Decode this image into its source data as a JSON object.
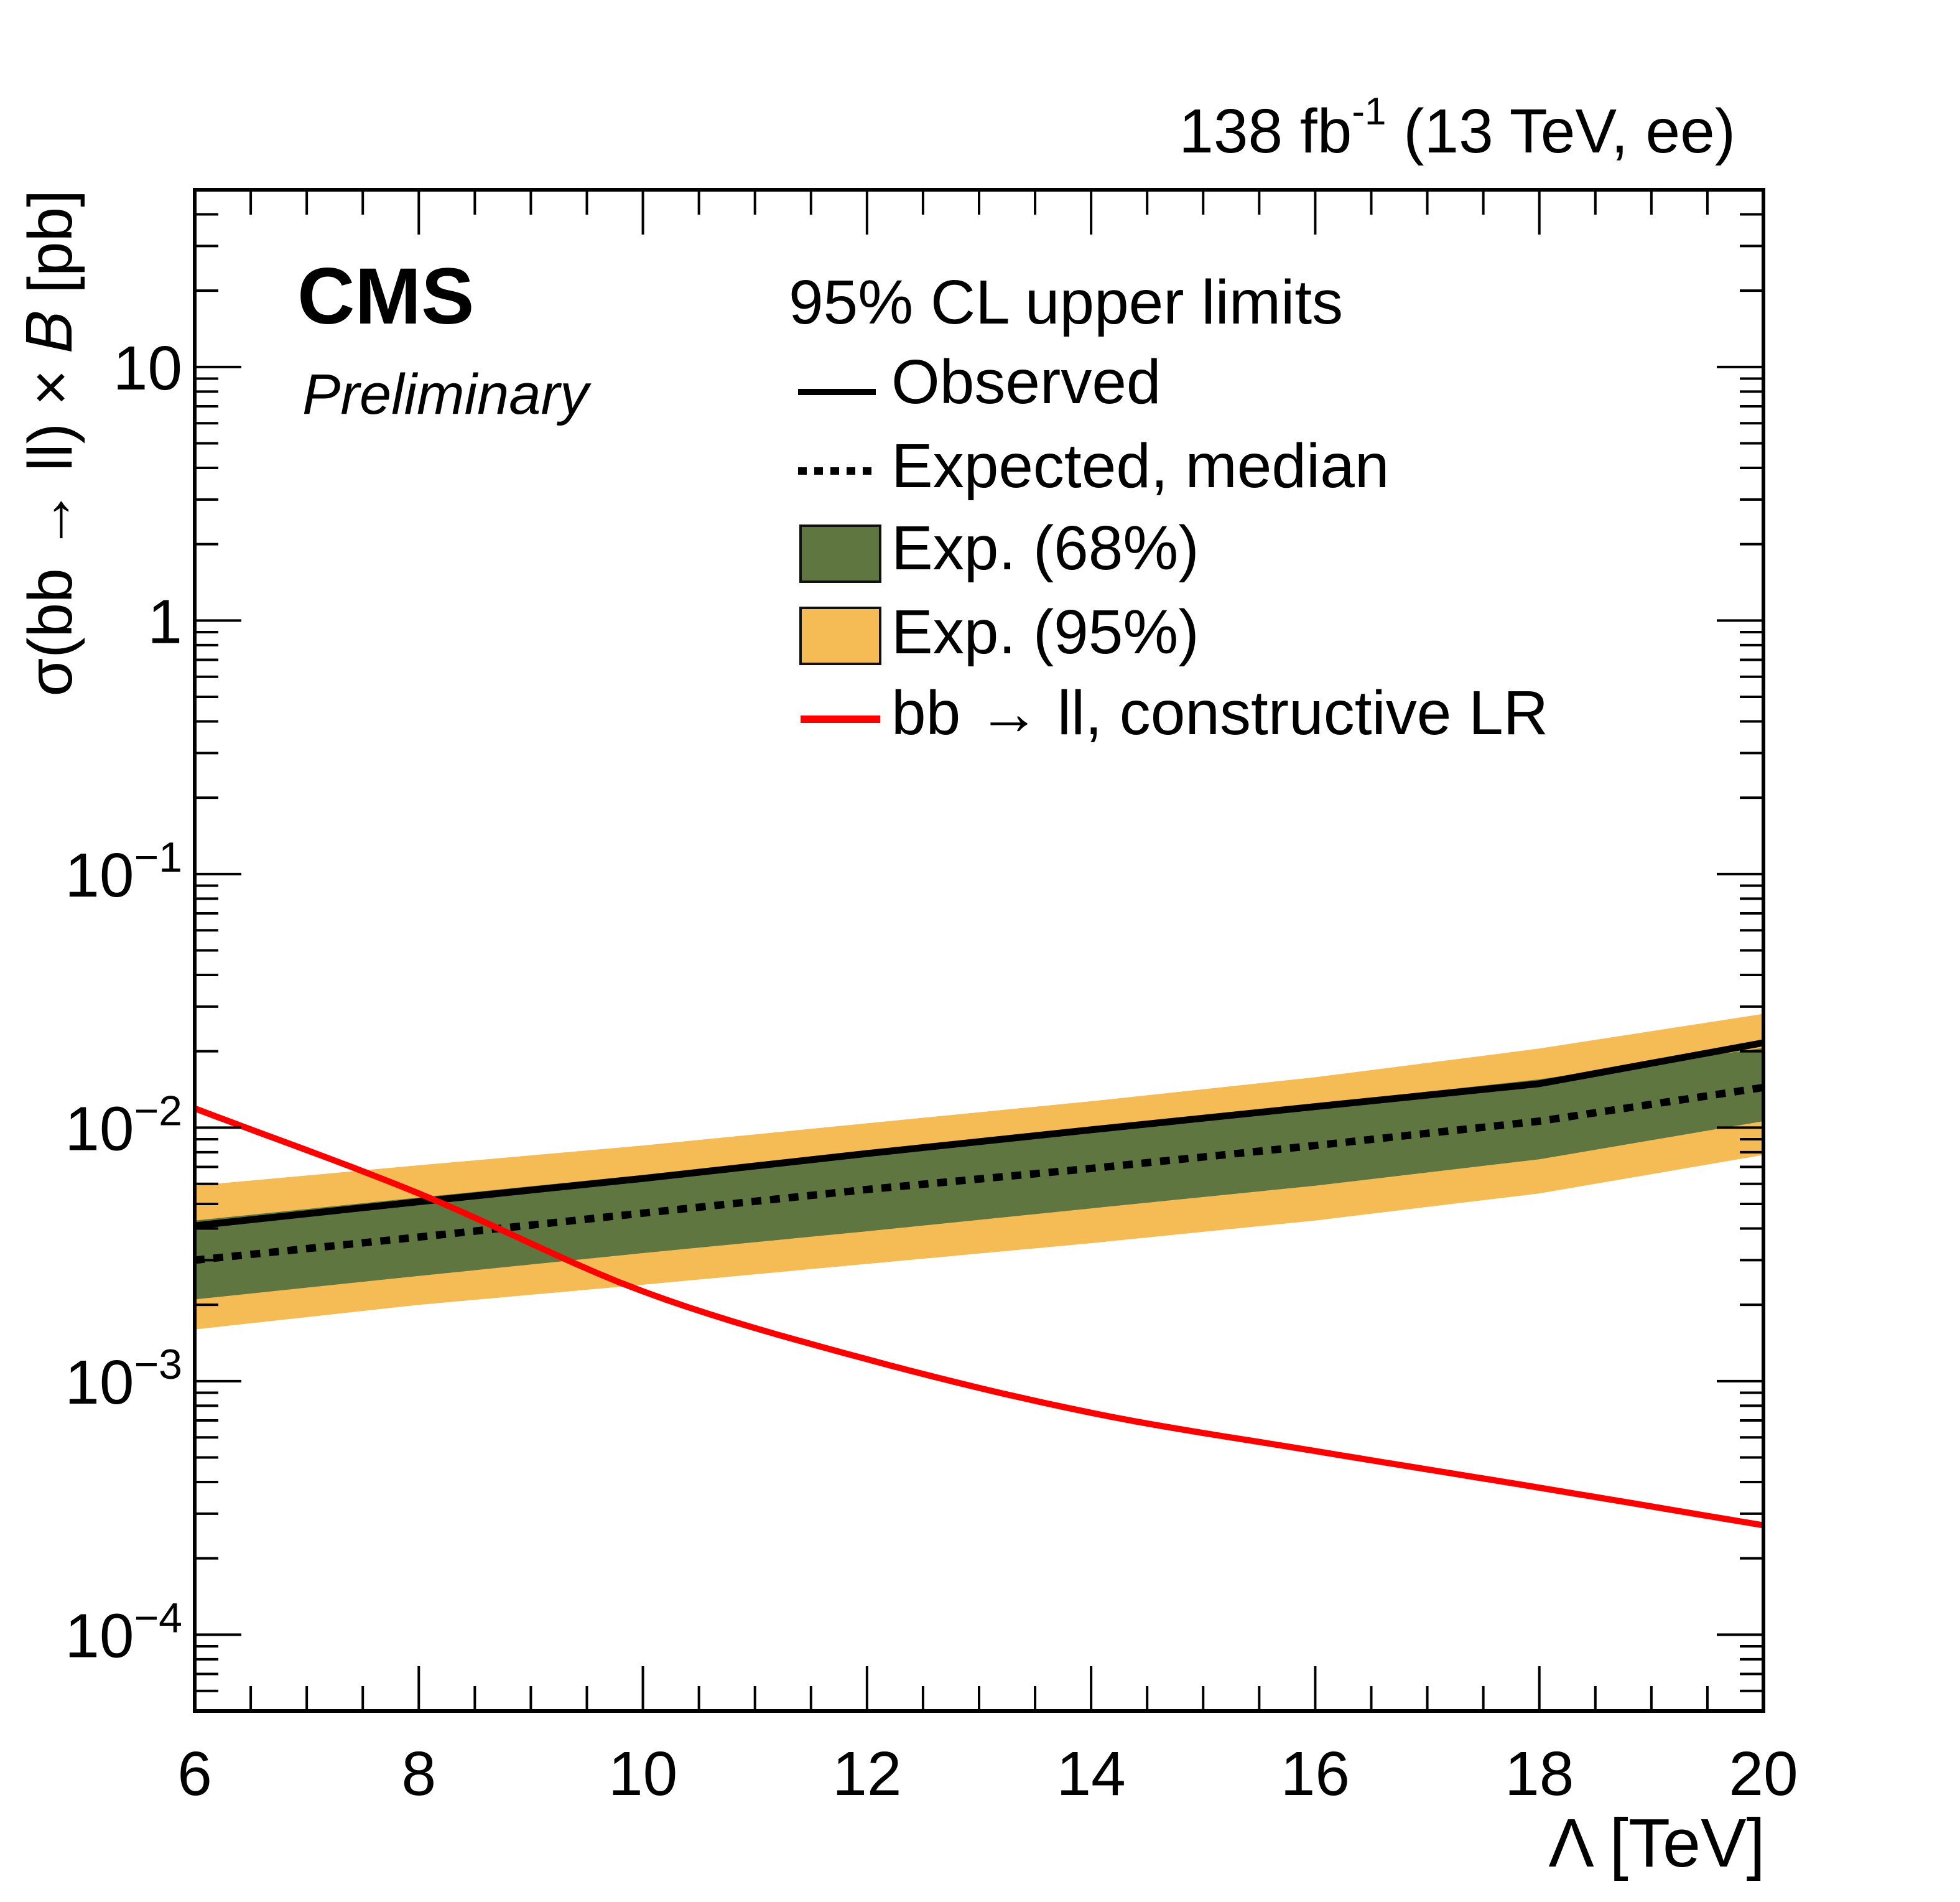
{
  "chart_data": {
    "type": "line",
    "title": "",
    "header_right": "138 fb",
    "header_right_sup": "-1",
    "header_right_rest": " (13 TeV, ee)",
    "experiment": "CMS",
    "status": "Preliminary",
    "xlabel": "Λ [TeV]",
    "ylabel": "σ(bb → ll) × 𝐵 [pb]",
    "xlim": [
      6,
      20
    ],
    "ylim": [
      5e-05,
      50
    ],
    "yscale": "log",
    "grid": false,
    "x_ticks": [
      6,
      8,
      10,
      12,
      14,
      16,
      18,
      20
    ],
    "x_tick_labels": [
      "6",
      "8",
      "10",
      "12",
      "14",
      "16",
      "18",
      "20"
    ],
    "y_ticks": [
      10,
      1,
      0.1,
      0.01,
      0.001,
      0.0001
    ],
    "y_tick_labels": [
      {
        "base": "10",
        "exp": ""
      },
      {
        "base": "1",
        "exp": ""
      },
      {
        "base": "10",
        "exp": "−1"
      },
      {
        "base": "10",
        "exp": "−2"
      },
      {
        "base": "10",
        "exp": "−3"
      },
      {
        "base": "10",
        "exp": "−4"
      }
    ],
    "legend": {
      "title": "95% CL upper limits",
      "position": "top-right",
      "entries": [
        {
          "label": "Observed",
          "style": "solid-line",
          "color": "#000000"
        },
        {
          "label": "Expected, median",
          "style": "dotted-line",
          "color": "#000000"
        },
        {
          "label": "Exp. (68%)",
          "style": "box",
          "color": "#607641"
        },
        {
          "label": "Exp. (95%)",
          "style": "box",
          "color": "#F5BB54"
        },
        {
          "label": "bb → ll, constructive LR",
          "style": "solid-line",
          "color": "#FF0000"
        }
      ]
    },
    "x": [
      6,
      8,
      10,
      12,
      14,
      16,
      18,
      20
    ],
    "series": [
      {
        "name": "Exp. (95%) upper",
        "values": [
          0.0059,
          0.0071,
          0.0085,
          0.0104,
          0.0127,
          0.0158,
          0.0205,
          0.0281
        ]
      },
      {
        "name": "Exp. (68%) upper",
        "values": [
          0.0043,
          0.0053,
          0.0065,
          0.0081,
          0.01,
          0.0124,
          0.0155,
          0.0206
        ]
      },
      {
        "name": "Observed",
        "values": [
          0.0041,
          0.0051,
          0.0063,
          0.0079,
          0.0098,
          0.0121,
          0.0149,
          0.0216
        ]
      },
      {
        "name": "Expected, median",
        "values": [
          0.003,
          0.0037,
          0.0046,
          0.0057,
          0.0069,
          0.0085,
          0.0106,
          0.0144
        ]
      },
      {
        "name": "Exp. (68%) lower",
        "values": [
          0.0021,
          0.0026,
          0.0032,
          0.0039,
          0.0048,
          0.0059,
          0.0075,
          0.0106
        ]
      },
      {
        "name": "Exp. (95%) lower",
        "values": [
          0.0016,
          0.002,
          0.0024,
          0.0029,
          0.0035,
          0.0043,
          0.0055,
          0.0078
        ]
      },
      {
        "name": "bb → ll, constructive LR",
        "values": [
          0.0119,
          0.0055,
          0.00226,
          0.00122,
          0.00075,
          0.00053,
          0.00038,
          0.00027
        ]
      }
    ],
    "colors": {
      "band95": "#F5BB54",
      "band68": "#607641",
      "observed": "#000000",
      "expected": "#000000",
      "theory": "#FF0000"
    }
  }
}
